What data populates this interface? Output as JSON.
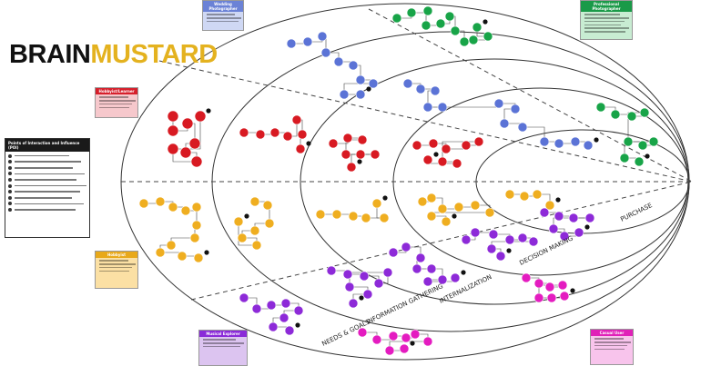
{
  "brand": {
    "part1": "BRAIN",
    "part2": "MUSTARD"
  },
  "stage_labels": {
    "purchase": "PURCHASE",
    "decision_making": "DECISION MAKING",
    "internalization": "INTERNALIZATION",
    "information_gathering": "INFORMATION GATHERING",
    "needs_goals": "NEEDS & GOALS"
  },
  "personas": [
    {
      "name": "Wedding Photographer",
      "fill": "#cfd8f4",
      "header": "#6b82d6",
      "lines": 3
    },
    {
      "name": "Professional Photographer",
      "fill": "#c8ecd2",
      "header": "#1a9a48",
      "lines": 6
    },
    {
      "name": "Hobbyist/Learner",
      "fill": "#f6c8cc",
      "header": "#d61f2b",
      "lines": 4
    },
    {
      "name": "Hobbyist",
      "fill": "#fbe0a4",
      "header": "#e8a91a",
      "lines": 4
    },
    {
      "name": "Musical Explorer",
      "fill": "#dcc4f0",
      "header": "#8a2ad8",
      "lines": 3
    },
    {
      "name": "Casual User",
      "fill": "#f8c4ec",
      "header": "#e020b8",
      "lines": 4
    }
  ],
  "legend_title": "Points of Interaction and Influence (POI)",
  "colors": {
    "blue": "#5b73d6",
    "green": "#18a448",
    "red": "#d81a22",
    "yellow": "#efae20",
    "purple": "#8d2ad8",
    "magenta": "#e41cc0"
  }
}
